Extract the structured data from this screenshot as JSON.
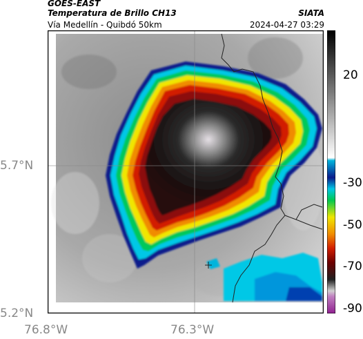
{
  "header": {
    "satellite": "GOES-EAST",
    "product": "Temperatura de Brillo CH13",
    "route": "Vía Medellín - Quibdó 50km",
    "org": "SIATA",
    "datetime": "2024-04-27 03:29"
  },
  "map": {
    "lat_labels": [
      "5.7°N",
      "5.2°N"
    ],
    "lon_labels": [
      "76.8°W",
      "76.3°W"
    ]
  },
  "colorbar": {
    "ticks": [
      "20",
      "-30",
      "-50",
      "-70",
      "-90"
    ]
  }
}
